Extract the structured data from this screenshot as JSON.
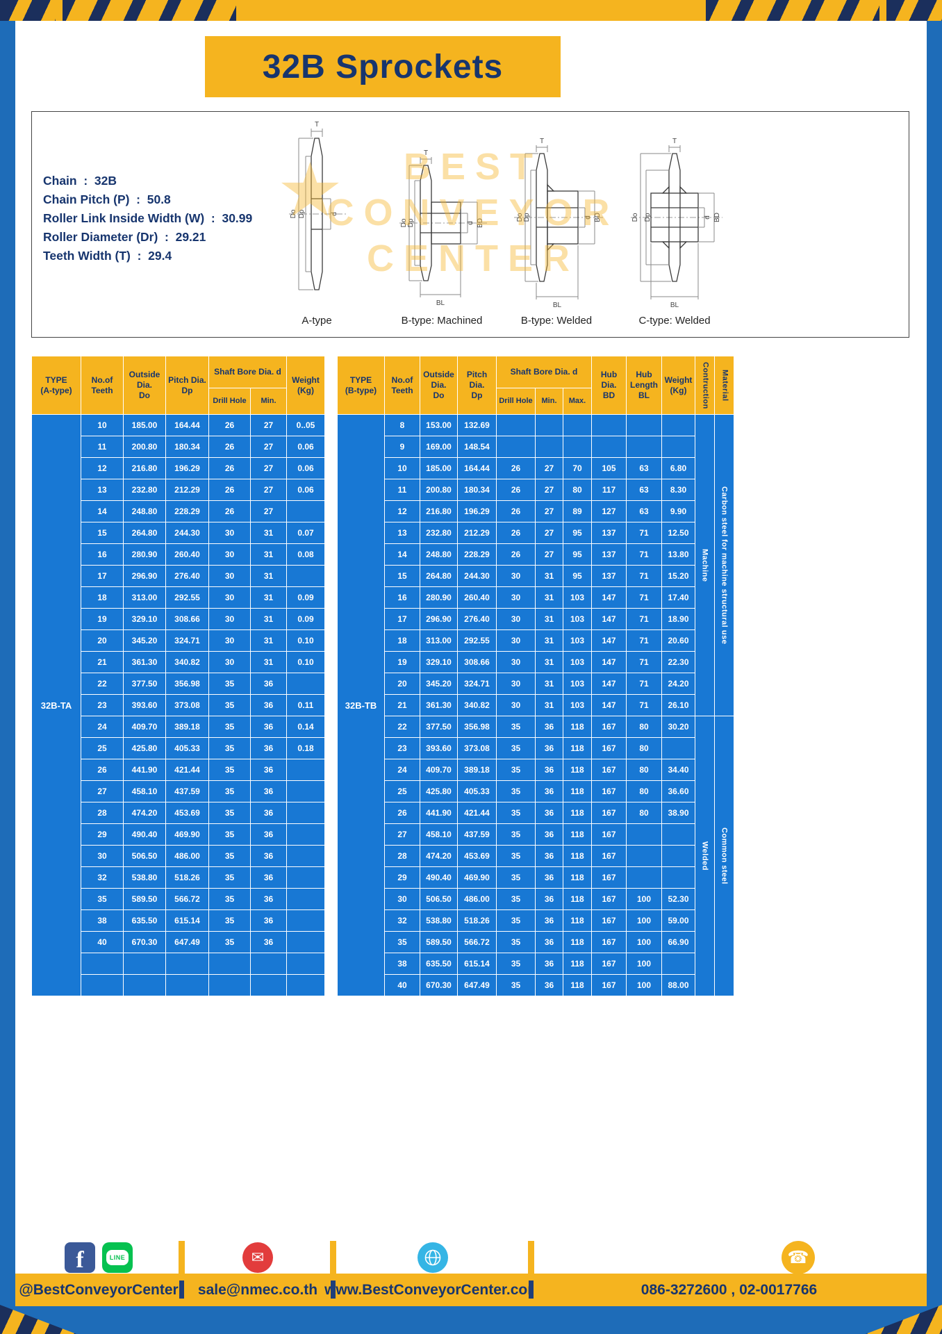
{
  "page": {
    "title": "32B Sprockets"
  },
  "specs": {
    "lines": [
      "Chain  :  32B",
      "Chain Pitch (P)  :  50.8",
      "Roller Link Inside Width (W)  :  30.99",
      "Roller Diameter (Dr)  :  29.21",
      "Teeth Width (T)  :  29.4"
    ]
  },
  "diagram": {
    "dims": {
      "t": "T",
      "do": "Do",
      "dp": "Dp",
      "d": "d",
      "bd": "BD",
      "bl": "BL"
    },
    "labels": [
      "A-type",
      "B-type: Machined",
      "B-type: Welded",
      "C-type: Welded"
    ],
    "watermark": [
      "BEST",
      "CONVEYOR",
      "CENTER"
    ],
    "logo_star": "★"
  },
  "table_a": {
    "type_label": "32B-TA",
    "headers": {
      "type": "TYPE\n(A-type)",
      "teeth": "No.of\nTeeth",
      "outside": "Outside\nDia.\nDo",
      "pitch": "Pitch Dia.\nDp",
      "shaft_bore": "Shaft Bore Dia. d",
      "drill_hole": "Drill Hole",
      "min": "Min.",
      "weight": "Weight\n(Kg)"
    },
    "rows": [
      [
        "10",
        "185.00",
        "164.44",
        "26",
        "27",
        "0..05"
      ],
      [
        "11",
        "200.80",
        "180.34",
        "26",
        "27",
        "0.06"
      ],
      [
        "12",
        "216.80",
        "196.29",
        "26",
        "27",
        "0.06"
      ],
      [
        "13",
        "232.80",
        "212.29",
        "26",
        "27",
        "0.06"
      ],
      [
        "14",
        "248.80",
        "228.29",
        "26",
        "27",
        ""
      ],
      [
        "15",
        "264.80",
        "244.30",
        "30",
        "31",
        "0.07"
      ],
      [
        "16",
        "280.90",
        "260.40",
        "30",
        "31",
        "0.08"
      ],
      [
        "17",
        "296.90",
        "276.40",
        "30",
        "31",
        ""
      ],
      [
        "18",
        "313.00",
        "292.55",
        "30",
        "31",
        "0.09"
      ],
      [
        "19",
        "329.10",
        "308.66",
        "30",
        "31",
        "0.09"
      ],
      [
        "20",
        "345.20",
        "324.71",
        "30",
        "31",
        "0.10"
      ],
      [
        "21",
        "361.30",
        "340.82",
        "30",
        "31",
        "0.10"
      ],
      [
        "22",
        "377.50",
        "356.98",
        "35",
        "36",
        ""
      ],
      [
        "23",
        "393.60",
        "373.08",
        "35",
        "36",
        "0.11"
      ],
      [
        "24",
        "409.70",
        "389.18",
        "35",
        "36",
        "0.14"
      ],
      [
        "25",
        "425.80",
        "405.33",
        "35",
        "36",
        "0.18"
      ],
      [
        "26",
        "441.90",
        "421.44",
        "35",
        "36",
        ""
      ],
      [
        "27",
        "458.10",
        "437.59",
        "35",
        "36",
        ""
      ],
      [
        "28",
        "474.20",
        "453.69",
        "35",
        "36",
        ""
      ],
      [
        "29",
        "490.40",
        "469.90",
        "35",
        "36",
        ""
      ],
      [
        "30",
        "506.50",
        "486.00",
        "35",
        "36",
        ""
      ],
      [
        "32",
        "538.80",
        "518.26",
        "35",
        "36",
        ""
      ],
      [
        "35",
        "589.50",
        "566.72",
        "35",
        "36",
        ""
      ],
      [
        "38",
        "635.50",
        "615.14",
        "35",
        "36",
        ""
      ],
      [
        "40",
        "670.30",
        "647.49",
        "35",
        "36",
        ""
      ],
      [
        "",
        "",
        "",
        "",
        "",
        ""
      ],
      [
        "",
        "",
        "",
        "",
        "",
        ""
      ]
    ]
  },
  "table_b": {
    "type_label": "32B-TB",
    "headers": {
      "type": "TYPE\n(B-type)",
      "teeth": "No.of\nTeeth",
      "outside": "Outside\nDia.\nDo",
      "pitch": "Pitch Dia.\nDp",
      "shaft_bore": "Shaft Bore Dia. d",
      "drill_hole": "Drill Hole",
      "min": "Min.",
      "max": "Max.",
      "hub_dia": "Hub Dia.\nBD",
      "hub_length": "Hub\nLength\nBL",
      "weight": "Weight\n(Kg)",
      "construction": "Contruction",
      "material": "Material"
    },
    "rows": [
      [
        "8",
        "153.00",
        "132.69",
        "",
        "",
        "",
        "",
        "",
        ""
      ],
      [
        "9",
        "169.00",
        "148.54",
        "",
        "",
        "",
        "",
        "",
        ""
      ],
      [
        "10",
        "185.00",
        "164.44",
        "26",
        "27",
        "70",
        "105",
        "63",
        "6.80"
      ],
      [
        "11",
        "200.80",
        "180.34",
        "26",
        "27",
        "80",
        "117",
        "63",
        "8.30"
      ],
      [
        "12",
        "216.80",
        "196.29",
        "26",
        "27",
        "89",
        "127",
        "63",
        "9.90"
      ],
      [
        "13",
        "232.80",
        "212.29",
        "26",
        "27",
        "95",
        "137",
        "71",
        "12.50"
      ],
      [
        "14",
        "248.80",
        "228.29",
        "26",
        "27",
        "95",
        "137",
        "71",
        "13.80"
      ],
      [
        "15",
        "264.80",
        "244.30",
        "30",
        "31",
        "95",
        "137",
        "71",
        "15.20"
      ],
      [
        "16",
        "280.90",
        "260.40",
        "30",
        "31",
        "103",
        "147",
        "71",
        "17.40"
      ],
      [
        "17",
        "296.90",
        "276.40",
        "30",
        "31",
        "103",
        "147",
        "71",
        "18.90"
      ],
      [
        "18",
        "313.00",
        "292.55",
        "30",
        "31",
        "103",
        "147",
        "71",
        "20.60"
      ],
      [
        "19",
        "329.10",
        "308.66",
        "30",
        "31",
        "103",
        "147",
        "71",
        "22.30"
      ],
      [
        "20",
        "345.20",
        "324.71",
        "30",
        "31",
        "103",
        "147",
        "71",
        "24.20"
      ],
      [
        "21",
        "361.30",
        "340.82",
        "30",
        "31",
        "103",
        "147",
        "71",
        "26.10"
      ],
      [
        "22",
        "377.50",
        "356.98",
        "35",
        "36",
        "118",
        "167",
        "80",
        "30.20"
      ],
      [
        "23",
        "393.60",
        "373.08",
        "35",
        "36",
        "118",
        "167",
        "80",
        ""
      ],
      [
        "24",
        "409.70",
        "389.18",
        "35",
        "36",
        "118",
        "167",
        "80",
        "34.40"
      ],
      [
        "25",
        "425.80",
        "405.33",
        "35",
        "36",
        "118",
        "167",
        "80",
        "36.60"
      ],
      [
        "26",
        "441.90",
        "421.44",
        "35",
        "36",
        "118",
        "167",
        "80",
        "38.90"
      ],
      [
        "27",
        "458.10",
        "437.59",
        "35",
        "36",
        "118",
        "167",
        "",
        ""
      ],
      [
        "28",
        "474.20",
        "453.69",
        "35",
        "36",
        "118",
        "167",
        "",
        ""
      ],
      [
        "29",
        "490.40",
        "469.90",
        "35",
        "36",
        "118",
        "167",
        "",
        ""
      ],
      [
        "30",
        "506.50",
        "486.00",
        "35",
        "36",
        "118",
        "167",
        "100",
        "52.30"
      ],
      [
        "32",
        "538.80",
        "518.26",
        "35",
        "36",
        "118",
        "167",
        "100",
        "59.00"
      ],
      [
        "35",
        "589.50",
        "566.72",
        "35",
        "36",
        "118",
        "167",
        "100",
        "66.90"
      ],
      [
        "38",
        "635.50",
        "615.14",
        "35",
        "36",
        "118",
        "167",
        "100",
        ""
      ],
      [
        "40",
        "670.30",
        "647.49",
        "35",
        "36",
        "118",
        "167",
        "100",
        "88.00"
      ]
    ],
    "groups": [
      {
        "start": 0,
        "count": 14,
        "construction": "Machine",
        "material": "Carbon steel for machine structural use"
      },
      {
        "start": 14,
        "count": 13,
        "construction": "Welded",
        "material": "Common steel"
      }
    ]
  },
  "footer": {
    "sections": [
      {
        "text": "@BestConveyorCenter"
      },
      {
        "text": "sale@nmec.co.th"
      },
      {
        "text": "www.BestConveyorCenter.com"
      },
      {
        "text": "086-3272600 , 02-0017766"
      }
    ],
    "icons": {
      "facebook": "f",
      "line": "LINE",
      "email": "✉",
      "phone": "☎"
    }
  }
}
